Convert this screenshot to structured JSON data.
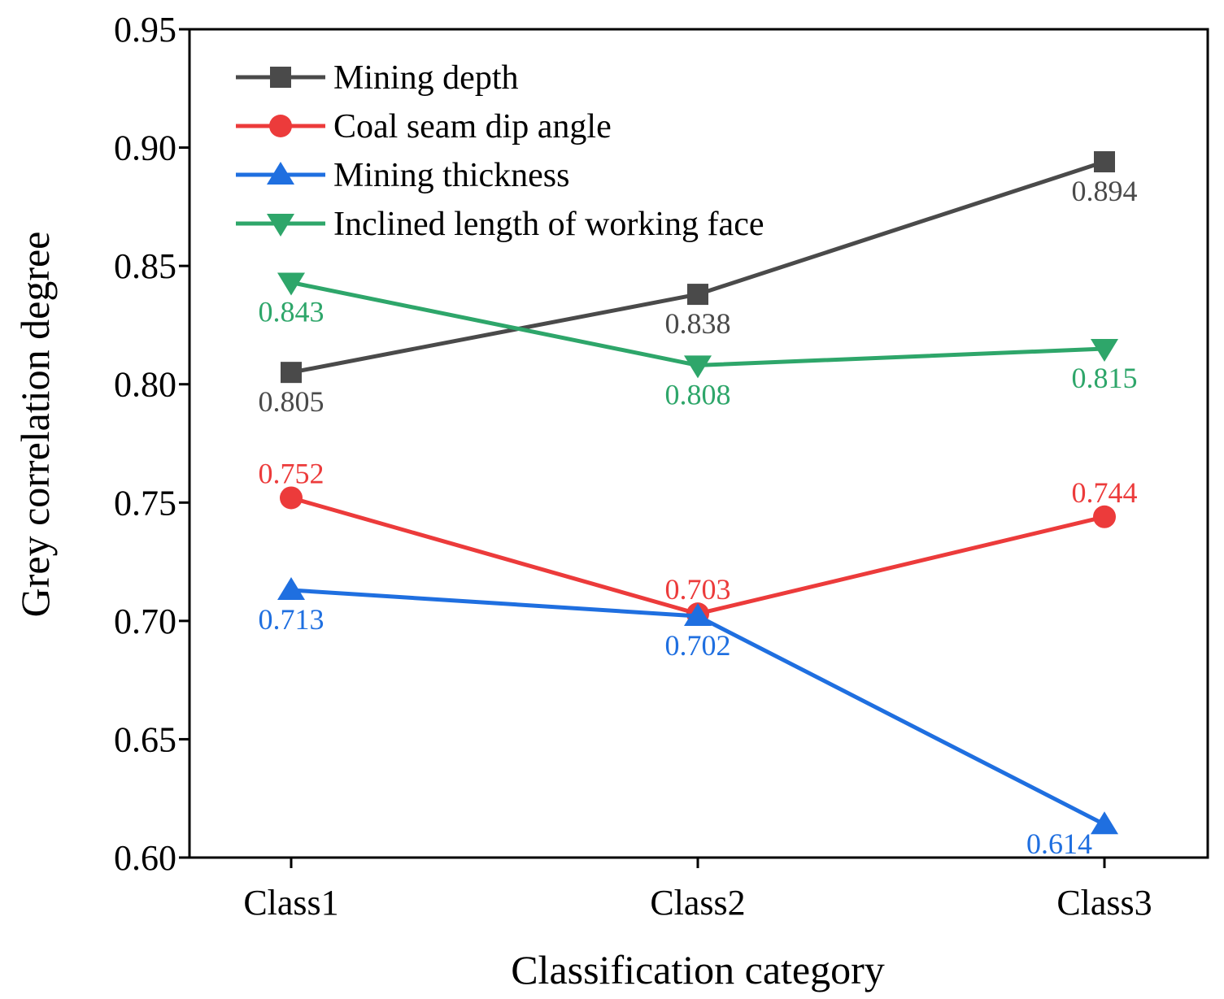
{
  "chart_data": {
    "type": "line",
    "title": "",
    "xlabel": "Classification category",
    "ylabel": "Grey correlation degree",
    "categories": [
      "Class1",
      "Class2",
      "Class3"
    ],
    "ylim": [
      0.6,
      0.95
    ],
    "yticks": [
      0.6,
      0.65,
      0.7,
      0.75,
      0.8,
      0.85,
      0.9,
      0.95
    ],
    "ytick_labels": [
      "0.60",
      "0.65",
      "0.70",
      "0.75",
      "0.80",
      "0.85",
      "0.90",
      "0.95"
    ],
    "grid": false,
    "legend_position": "top-left",
    "series": [
      {
        "name": "Mining depth",
        "marker": "square",
        "color": "#4a4a4a",
        "values": [
          0.805,
          0.838,
          0.894
        ],
        "labels": [
          "0.805",
          "0.838",
          "0.894"
        ],
        "label_positions": [
          "below",
          "below",
          "below"
        ]
      },
      {
        "name": "Coal seam dip angle",
        "marker": "circle",
        "color": "#ec3b3b",
        "values": [
          0.752,
          0.703,
          0.744
        ],
        "labels": [
          "0.752",
          "0.703",
          "0.744"
        ],
        "label_positions": [
          "above",
          "above",
          "above"
        ]
      },
      {
        "name": "Mining thickness",
        "marker": "triangle-up",
        "color": "#1f6fe0",
        "values": [
          0.713,
          0.702,
          0.614
        ],
        "labels": [
          "0.713",
          "0.702",
          "0.614"
        ],
        "label_positions": [
          "below",
          "below",
          "below-left"
        ]
      },
      {
        "name": "Inclined length of working face",
        "marker": "triangle-down",
        "color": "#2ea66a",
        "values": [
          0.843,
          0.808,
          0.815
        ],
        "labels": [
          "0.843",
          "0.808",
          "0.815"
        ],
        "label_positions": [
          "below",
          "below",
          "below"
        ]
      }
    ]
  }
}
